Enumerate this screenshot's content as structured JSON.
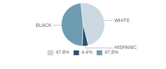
{
  "chart_data": {
    "type": "pie",
    "categories": [
      "WHITE",
      "HISPANIC",
      "BLACK"
    ],
    "values": [
      47.8,
      4.4,
      47.8
    ],
    "value_labels": [
      "47.8%",
      "4.4%",
      "47.8%"
    ],
    "colors": [
      "#cdd9e0",
      "#2b4f6e",
      "#6d9cb0"
    ],
    "legend": "bottom"
  }
}
